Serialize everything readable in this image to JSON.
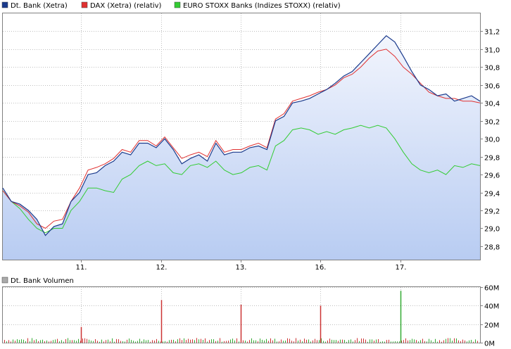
{
  "legend": [
    {
      "label": "Dt. Bank (Xetra)",
      "color": "#1a3a8c"
    },
    {
      "label": "DAX (Xetra) (relativ)",
      "color": "#e03030"
    },
    {
      "label": "EURO STOXX Banks (Indizes STOXX) (relativ)",
      "color": "#33cc33"
    }
  ],
  "volume_legend": {
    "label": "Dt. Bank Volumen",
    "color": "#aaaaaa"
  },
  "colors": {
    "fill_top": "#f2f5fd",
    "fill_bottom": "#b8ccf2",
    "grid": "#bfbfbf",
    "volume_bar_a": "#cc3333",
    "volume_bar_b": "#33aa33"
  },
  "chart_data": [
    {
      "type": "line",
      "title": "",
      "x_tick_labels": [
        "11.",
        "12.",
        "13.",
        "16.",
        "17."
      ],
      "y_tick_labels": [
        "28,8",
        "29,0",
        "29,2",
        "29,4",
        "29,6",
        "29,8",
        "30,0",
        "30,2",
        "30,4",
        "30,6",
        "30,8",
        "31,0",
        "31,2"
      ],
      "ylim": [
        28.65,
        31.4
      ],
      "grid": true,
      "legend_position": "top-left",
      "series": [
        {
          "name": "Dt. Bank (Xetra)",
          "color": "#1a3a8c",
          "filled": true,
          "values": [
            29.45,
            29.3,
            29.27,
            29.2,
            29.1,
            28.92,
            29.02,
            29.05,
            29.3,
            29.4,
            29.6,
            29.62,
            29.7,
            29.75,
            29.85,
            29.82,
            29.95,
            29.95,
            29.9,
            30.0,
            29.88,
            29.72,
            29.78,
            29.82,
            29.75,
            29.95,
            29.82,
            29.85,
            29.85,
            29.9,
            29.92,
            29.88,
            30.2,
            30.25,
            30.4,
            30.42,
            30.45,
            30.5,
            30.55,
            30.62,
            30.7,
            30.75,
            30.85,
            30.95,
            31.05,
            31.15,
            31.08,
            30.92,
            30.75,
            30.6,
            30.55,
            30.48,
            30.5,
            30.42,
            30.45,
            30.48,
            30.42
          ]
        },
        {
          "name": "DAX (Xetra) (relativ)",
          "color": "#e03030",
          "values": [
            29.42,
            29.3,
            29.25,
            29.18,
            29.05,
            29.0,
            29.08,
            29.1,
            29.3,
            29.45,
            29.65,
            29.68,
            29.72,
            29.78,
            29.88,
            29.85,
            29.98,
            29.98,
            29.92,
            30.02,
            29.9,
            29.78,
            29.82,
            29.85,
            29.8,
            29.98,
            29.85,
            29.88,
            29.88,
            29.92,
            29.95,
            29.9,
            30.22,
            30.28,
            30.42,
            30.45,
            30.48,
            30.52,
            30.55,
            30.6,
            30.68,
            30.72,
            30.8,
            30.9,
            30.98,
            31.0,
            30.92,
            30.8,
            30.72,
            30.62,
            30.52,
            30.48,
            30.45,
            30.45,
            30.42,
            30.42,
            30.4
          ]
        },
        {
          "name": "EURO STOXX Banks (Indizes STOXX) (relativ)",
          "color": "#33cc33",
          "values": [
            29.42,
            29.3,
            29.22,
            29.1,
            29.0,
            28.95,
            29.0,
            29.0,
            29.2,
            29.3,
            29.45,
            29.45,
            29.42,
            29.4,
            29.55,
            29.6,
            29.7,
            29.75,
            29.7,
            29.72,
            29.62,
            29.6,
            29.7,
            29.72,
            29.68,
            29.75,
            29.65,
            29.6,
            29.62,
            29.68,
            29.7,
            29.65,
            29.92,
            29.98,
            30.1,
            30.12,
            30.1,
            30.05,
            30.08,
            30.05,
            30.1,
            30.12,
            30.15,
            30.12,
            30.15,
            30.12,
            30.0,
            29.85,
            29.72,
            29.65,
            29.62,
            29.65,
            29.6,
            29.7,
            29.68,
            29.72,
            29.7
          ]
        }
      ]
    },
    {
      "type": "bar",
      "title": "",
      "series_name": "Dt. Bank Volumen",
      "y_tick_labels": [
        "0M",
        "20M",
        "40M",
        "60M"
      ],
      "ylim": [
        0,
        60
      ],
      "spikes": [
        {
          "day": 1,
          "value": 17
        },
        {
          "day": 2,
          "value": 46
        },
        {
          "day": 3,
          "value": 41
        },
        {
          "day": 4,
          "value": 40
        },
        {
          "day": 5,
          "value": 56
        }
      ],
      "baseline_value": 3
    }
  ]
}
